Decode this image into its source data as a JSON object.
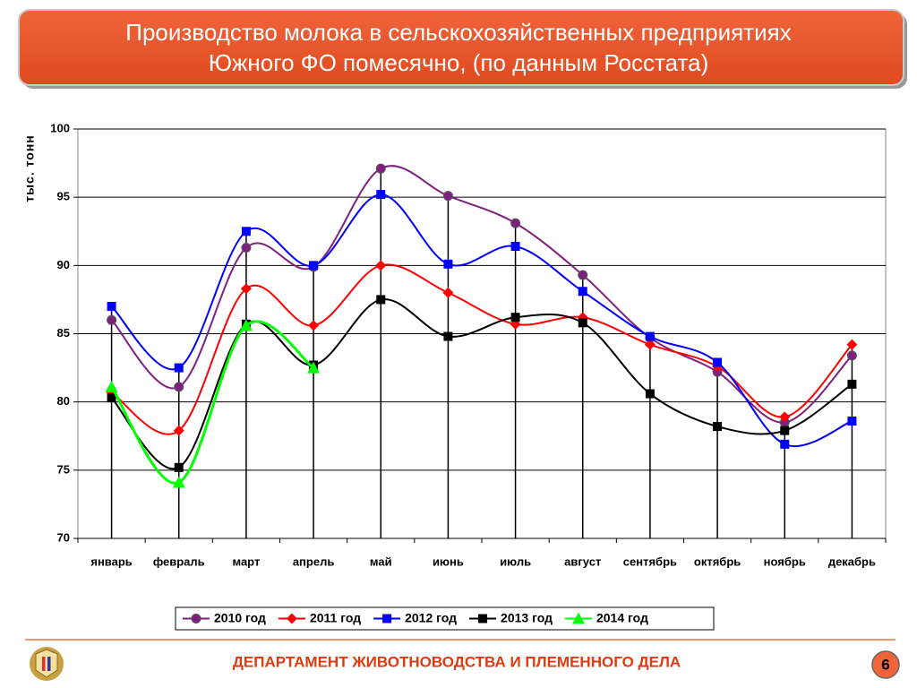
{
  "chart_data": {
    "type": "line",
    "title": [
      "Производство молока в сельскохозяйственных предприятиях",
      "Южного ФО помесячно, (по данным Росстата)"
    ],
    "y_label": "тыс. тонн",
    "categories": [
      "январь",
      "февраль",
      "март",
      "апрель",
      "май",
      "июнь",
      "июль",
      "август",
      "сентябрь",
      "октябрь",
      "ноябрь",
      "декабрь"
    ],
    "ylim": [
      70,
      100
    ],
    "yticks": [
      70,
      75,
      80,
      85,
      90,
      95,
      100
    ],
    "grid": true,
    "legend": "bottom",
    "smooth": true,
    "series": [
      {
        "name": "2010 год",
        "color": "#7f1f7f",
        "marker": "circle",
        "values": [
          86.0,
          81.1,
          91.3,
          89.9,
          97.1,
          95.1,
          93.1,
          89.3,
          84.7,
          82.2,
          78.5,
          83.4
        ]
      },
      {
        "name": "2011 год",
        "color": "#ff0000",
        "marker": "diamond",
        "values": [
          80.7,
          77.9,
          88.3,
          85.6,
          90.0,
          88.0,
          85.7,
          86.2,
          84.2,
          82.6,
          78.9,
          84.2
        ]
      },
      {
        "name": "2012 год",
        "color": "#0000ff",
        "marker": "square",
        "values": [
          87.0,
          82.5,
          92.5,
          90.0,
          95.2,
          90.1,
          91.4,
          88.1,
          84.8,
          82.9,
          76.9,
          78.6
        ]
      },
      {
        "name": "2013 год",
        "color": "#000000",
        "marker": "square",
        "values": [
          80.3,
          75.2,
          85.7,
          82.7,
          87.5,
          84.8,
          86.2,
          85.8,
          80.6,
          78.2,
          77.9,
          81.3
        ]
      },
      {
        "name": "2014 год",
        "color": "#00ff00",
        "marker": "triangle",
        "values": [
          81.1,
          74.1,
          85.6,
          82.5,
          null,
          null,
          null,
          null,
          null,
          null,
          null,
          null
        ]
      }
    ]
  },
  "footer": {
    "department": "ДЕПАРТАМЕНТ ЖИВОТНОВОДСТВА И ПЛЕМЕННОГО ДЕЛА",
    "page_number": 6
  }
}
